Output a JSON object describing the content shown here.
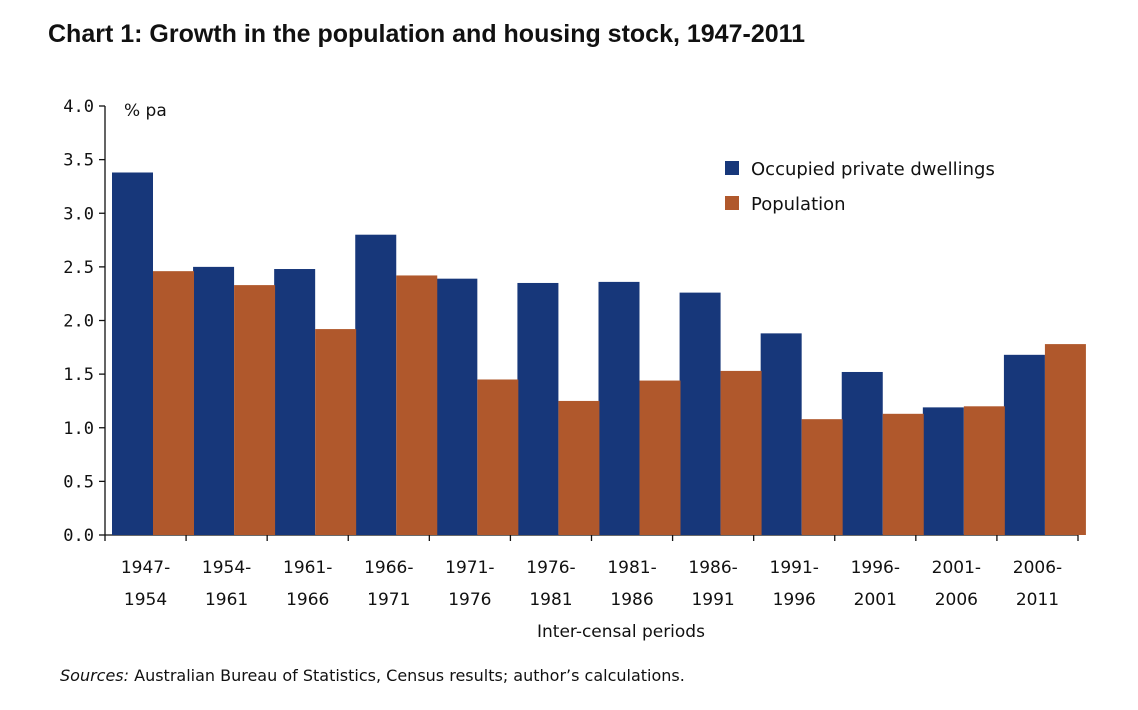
{
  "title": "Chart 1:  Growth in the population and housing stock, 1947-2011",
  "sources": {
    "prefix": "Sources:",
    "text": " Australian Bureau of Statistics, Census results; author’s calculations."
  },
  "chart_data": {
    "type": "bar",
    "title": "Chart 1:  Growth in the population and housing stock, 1947-2011",
    "ylabel": "% pa",
    "xlabel": "Inter-censal periods",
    "ylim": [
      0,
      4.0
    ],
    "yticks": [
      "0.0",
      "0.5",
      "1.0",
      "1.5",
      "2.0",
      "2.5",
      "3.0",
      "3.5",
      "4.0"
    ],
    "categories": [
      [
        "1947-",
        "1954"
      ],
      [
        "1954-",
        "1961"
      ],
      [
        "1961-",
        "1966"
      ],
      [
        "1966-",
        "1971"
      ],
      [
        "1971-",
        "1976"
      ],
      [
        "1976-",
        "1981"
      ],
      [
        "1981-",
        "1986"
      ],
      [
        "1986-",
        "1991"
      ],
      [
        "1991-",
        "1996"
      ],
      [
        "1996-",
        "2001"
      ],
      [
        "2001-",
        "2006"
      ],
      [
        "2006-",
        "2011"
      ]
    ],
    "series": [
      {
        "name": "Occupied private dwellings",
        "color": "#17377a",
        "values": [
          3.38,
          2.5,
          2.48,
          2.8,
          2.39,
          2.35,
          2.36,
          2.26,
          1.88,
          1.52,
          1.19,
          1.68
        ]
      },
      {
        "name": "Population",
        "color": "#b0582c",
        "values": [
          2.46,
          2.33,
          1.92,
          2.42,
          1.45,
          1.25,
          1.44,
          1.53,
          1.08,
          1.13,
          1.2,
          1.78
        ]
      }
    ],
    "legend_position": "top-right",
    "grid": false
  }
}
